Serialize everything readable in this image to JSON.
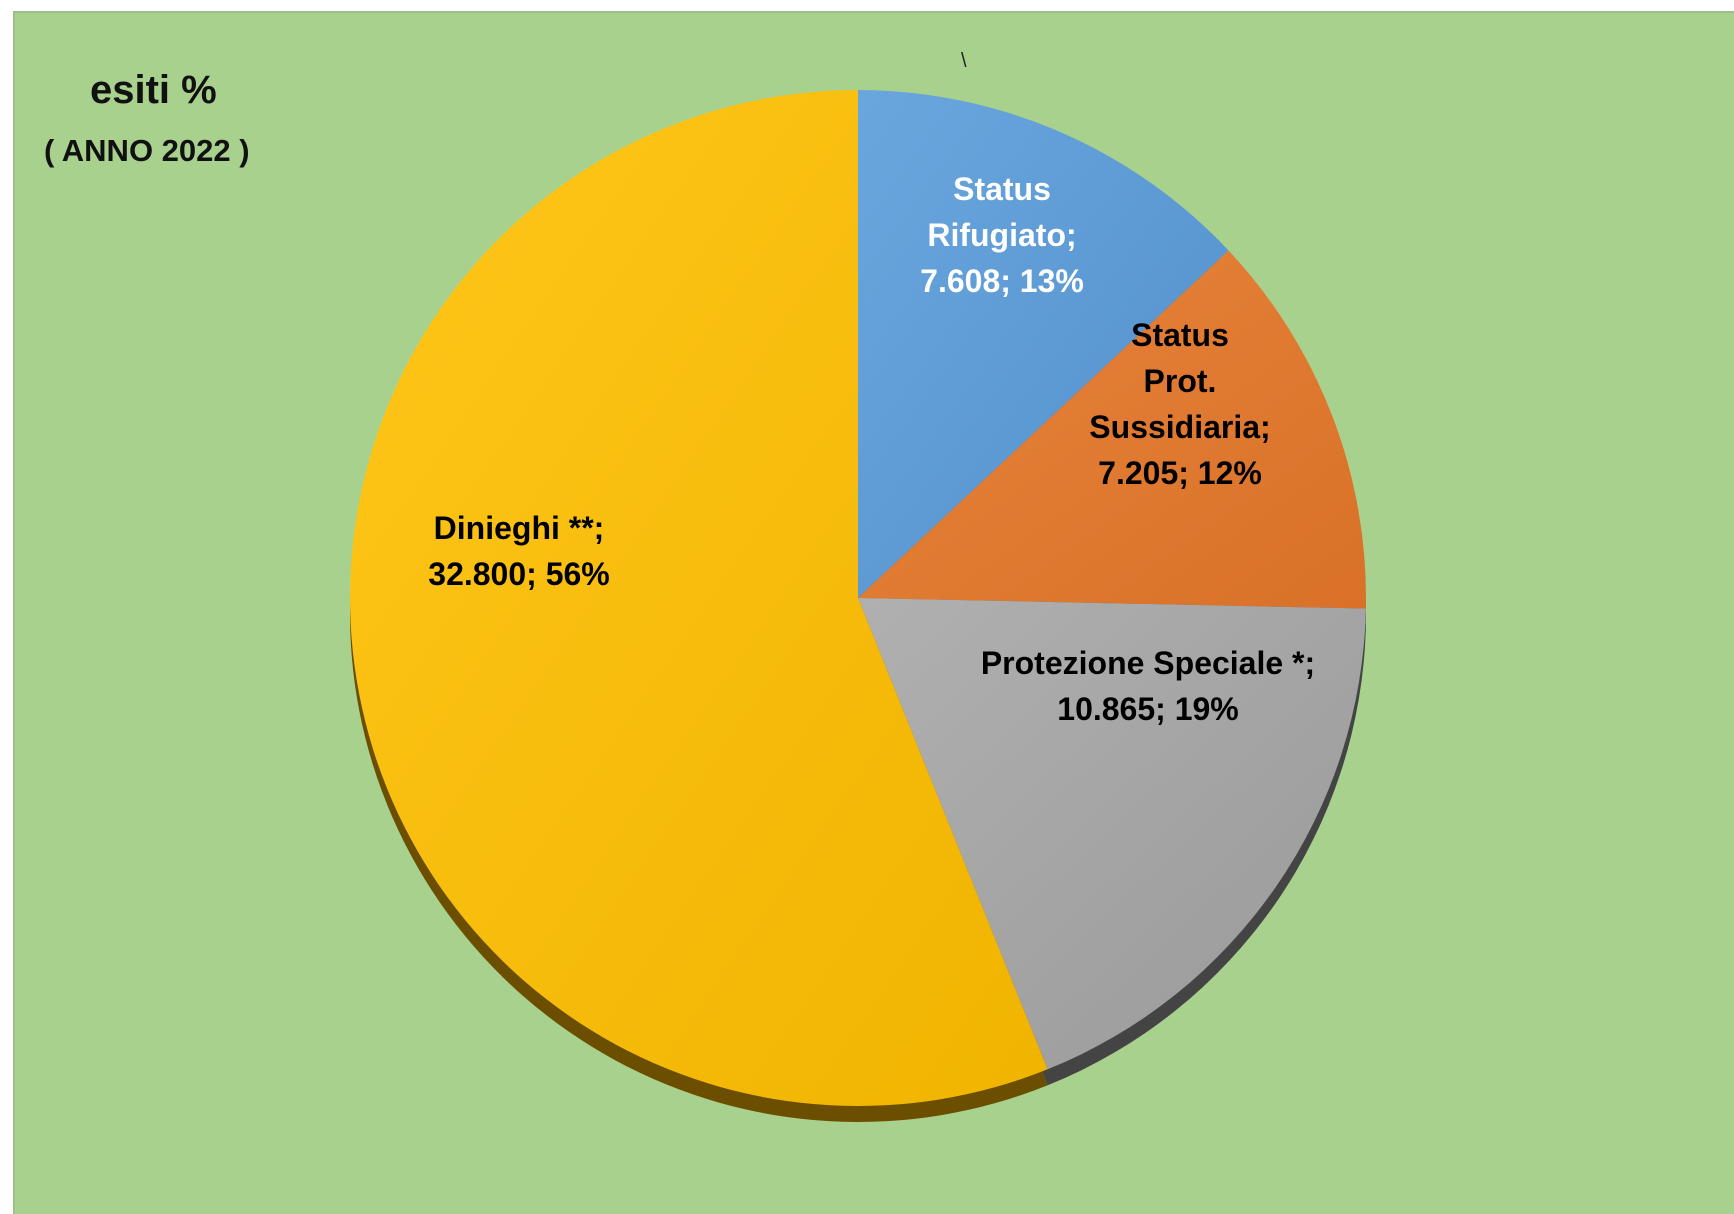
{
  "chart_data": {
    "type": "pie",
    "title": "esiti %",
    "subtitle": "( ANNO 2022 )",
    "stray_mark": "\\",
    "slices": [
      {
        "lines": [
          "Status",
          "Rifugiato;",
          "7.608; 13%"
        ],
        "value": 7608,
        "percent": 13,
        "color": "#5b9bd5",
        "label_color": "#ffffff"
      },
      {
        "lines": [
          "Status",
          "Prot.",
          "Sussidiaria;",
          "7.205; 12%"
        ],
        "value": 7205,
        "percent": 12,
        "color": "#e07a32",
        "label_color": "#000000"
      },
      {
        "lines": [
          "Protezione Speciale *;",
          "10.865; 19%"
        ],
        "value": 10865,
        "percent": 19,
        "color": "#a5a5a5",
        "label_color": "#000000"
      },
      {
        "lines": [
          "Dinieghi **;",
          "32.800; 56%"
        ],
        "value": 32800,
        "percent": 56,
        "color": "#f8bf0f",
        "label_color": "#000000"
      }
    ]
  }
}
